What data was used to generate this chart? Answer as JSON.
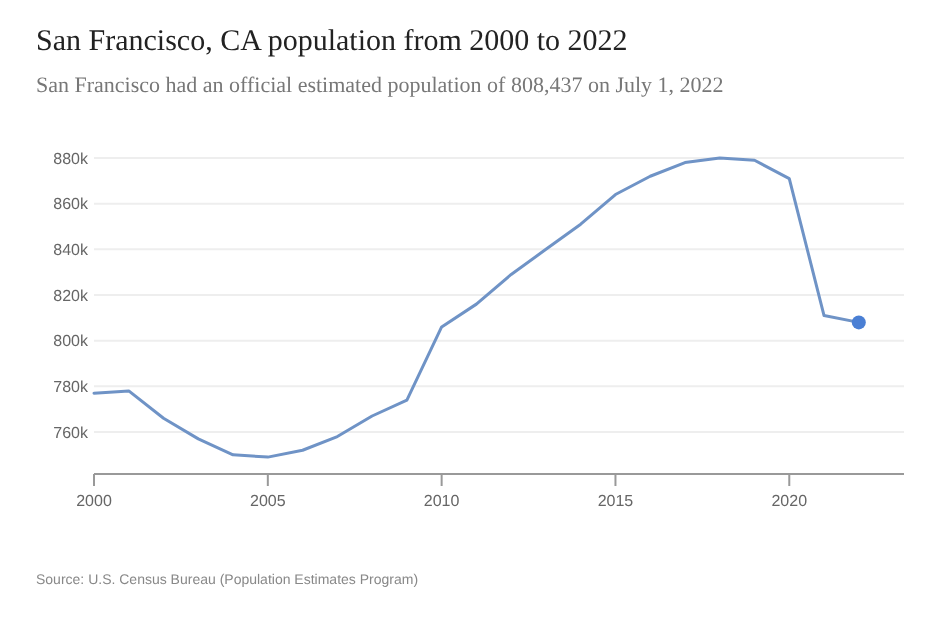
{
  "chart_data": {
    "type": "line",
    "title": "San Francisco, CA population from 2000 to 2022",
    "subtitle": "San Francisco had an official estimated population of 808,437 on July 1, 2022",
    "x": [
      2000,
      2001,
      2002,
      2003,
      2004,
      2005,
      2006,
      2007,
      2008,
      2009,
      2010,
      2011,
      2012,
      2013,
      2014,
      2015,
      2016,
      2017,
      2018,
      2019,
      2020,
      2021,
      2022
    ],
    "series": [
      {
        "color": "#6f93c6",
        "values": [
          777000,
          778000,
          766000,
          757000,
          750000,
          749000,
          752000,
          758000,
          767000,
          774000,
          806000,
          816000,
          829000,
          840000,
          851000,
          864000,
          872000,
          878000,
          880000,
          879000,
          871000,
          811000,
          808000
        ]
      },
      {
        "type": "scatter",
        "color": "#4a7fd4",
        "x": [
          2022
        ],
        "values": [
          808000
        ]
      }
    ],
    "xlim": [
      2000,
      2023.3
    ],
    "xticks": [
      2000,
      2005,
      2010,
      2015,
      2020
    ],
    "ylim": [
      741600,
      880000
    ],
    "yticks": [
      {
        "value": 760000,
        "label": "760k"
      },
      {
        "value": 780000,
        "label": "780k"
      },
      {
        "value": 800000,
        "label": "800k"
      },
      {
        "value": 820000,
        "label": "820k"
      },
      {
        "value": 840000,
        "label": "840k"
      },
      {
        "value": 860000,
        "label": "860k"
      },
      {
        "value": 880000,
        "label": "880k"
      }
    ],
    "grid": "y",
    "annotations": [
      "Source: U.S. Census Bureau (Population Estimates Program)"
    ]
  }
}
